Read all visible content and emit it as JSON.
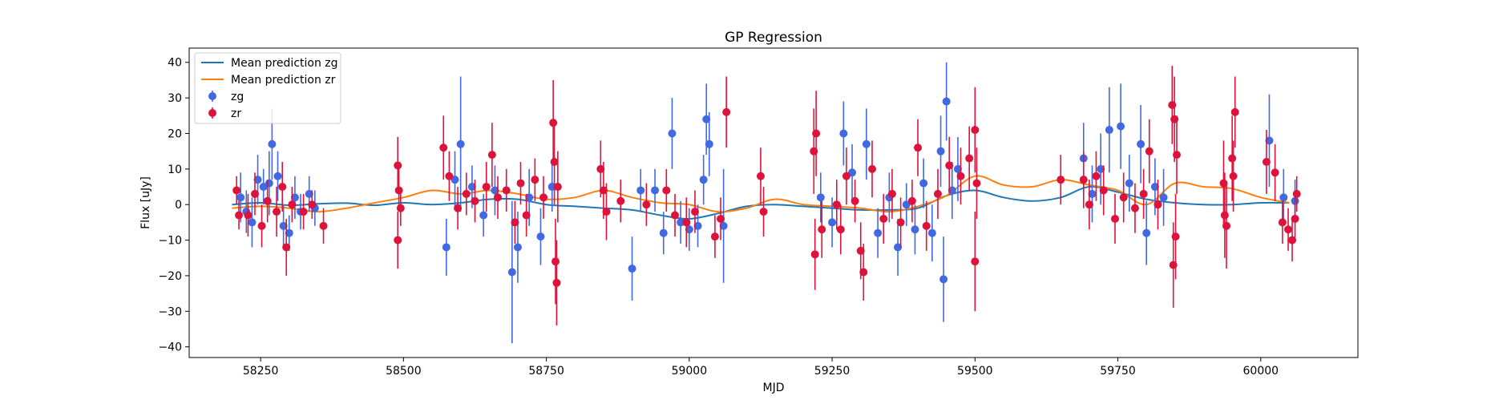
{
  "chart_data": {
    "type": "scatter",
    "title": "GP Regression",
    "xlabel": "MJD",
    "ylabel": "Flux [uJy]",
    "xlim": [
      58125,
      60170
    ],
    "ylim": [
      -43,
      44
    ],
    "xticks": [
      58250,
      58500,
      58750,
      59000,
      59250,
      59500,
      59750,
      60000
    ],
    "yticks": [
      -40,
      -30,
      -20,
      -10,
      0,
      10,
      20,
      30,
      40
    ],
    "grid": false,
    "legend_position": "top-left",
    "legend": [
      "Mean prediction zg",
      "Mean prediction zr",
      "zg",
      "zr"
    ],
    "series": [
      {
        "name": "Mean prediction zg",
        "kind": "line",
        "color": "#1f77b4",
        "x": [
          58200,
          58250,
          58300,
          58350,
          58400,
          58450,
          58500,
          58550,
          58600,
          58650,
          58700,
          58750,
          58800,
          58850,
          58900,
          58950,
          59000,
          59050,
          59100,
          59150,
          59200,
          59250,
          59300,
          59350,
          59400,
          59450,
          59500,
          59550,
          59600,
          59650,
          59700,
          59750,
          59800,
          59850,
          59900,
          59950,
          60000,
          60050
        ],
        "values": [
          0.0,
          0.5,
          -0.2,
          0.2,
          0.4,
          -0.2,
          0.5,
          0.0,
          0.5,
          1.5,
          1.5,
          0.0,
          -0.5,
          -1.0,
          -1.5,
          -3.0,
          -4.0,
          -2.5,
          -0.5,
          0.0,
          -0.5,
          -1.0,
          -1.5,
          -1.5,
          -1.0,
          2.5,
          4.0,
          2.0,
          1.0,
          2.0,
          5.0,
          3.5,
          1.5,
          0.5,
          0.0,
          0.0,
          0.5,
          0.5
        ]
      },
      {
        "name": "Mean prediction zr",
        "kind": "line",
        "color": "#ff7f0e",
        "x": [
          58200,
          58250,
          58300,
          58350,
          58400,
          58450,
          58500,
          58550,
          58600,
          58650,
          58700,
          58750,
          58800,
          58850,
          58900,
          58950,
          59000,
          59050,
          59100,
          59150,
          59200,
          59250,
          59300,
          59350,
          59400,
          59450,
          59500,
          59550,
          59600,
          59650,
          59700,
          59750,
          59800,
          59850,
          59900,
          59950,
          60000,
          60050
        ],
        "values": [
          -1.0,
          -0.5,
          -1.0,
          -2.0,
          -1.0,
          0.5,
          2.0,
          4.0,
          3.0,
          4.0,
          3.0,
          1.5,
          2.0,
          4.0,
          2.0,
          0.5,
          0.0,
          -2.0,
          -1.0,
          1.5,
          0.0,
          -0.5,
          -1.0,
          -2.0,
          -0.5,
          2.5,
          8.0,
          5.5,
          5.0,
          7.0,
          5.5,
          4.0,
          0.0,
          6.0,
          5.0,
          4.5,
          2.0,
          0.5
        ]
      },
      {
        "name": "zg",
        "kind": "errorbar",
        "color": "#4169e1",
        "points": [
          {
            "x": 58215,
            "y": 2,
            "err": 7
          },
          {
            "x": 58225,
            "y": -2,
            "err": 6
          },
          {
            "x": 58235,
            "y": -5,
            "err": 7
          },
          {
            "x": 58245,
            "y": 7,
            "err": 7
          },
          {
            "x": 58255,
            "y": 5,
            "err": 5
          },
          {
            "x": 58265,
            "y": 6,
            "err": 9
          },
          {
            "x": 58270,
            "y": 17,
            "err": 10
          },
          {
            "x": 58280,
            "y": 8,
            "err": 7
          },
          {
            "x": 58290,
            "y": -6,
            "err": 6
          },
          {
            "x": 58300,
            "y": -8,
            "err": 5
          },
          {
            "x": 58310,
            "y": 2,
            "err": 6
          },
          {
            "x": 58320,
            "y": -2,
            "err": 5
          },
          {
            "x": 58335,
            "y": 3,
            "err": 5
          },
          {
            "x": 58345,
            "y": -1,
            "err": 5
          },
          {
            "x": 58575,
            "y": -12,
            "err": 8
          },
          {
            "x": 58590,
            "y": 7,
            "err": 8
          },
          {
            "x": 58600,
            "y": 17,
            "err": 19
          },
          {
            "x": 58620,
            "y": 5,
            "err": 6
          },
          {
            "x": 58640,
            "y": -3,
            "err": 6
          },
          {
            "x": 58660,
            "y": 4,
            "err": 7
          },
          {
            "x": 58690,
            "y": -19,
            "err": 20
          },
          {
            "x": 58700,
            "y": -12,
            "err": 10
          },
          {
            "x": 58720,
            "y": 2,
            "err": 8
          },
          {
            "x": 58740,
            "y": -9,
            "err": 8
          },
          {
            "x": 58760,
            "y": 5,
            "err": 7
          },
          {
            "x": 58900,
            "y": -18,
            "err": 9
          },
          {
            "x": 58915,
            "y": 4,
            "err": 6
          },
          {
            "x": 58940,
            "y": 4,
            "err": 6
          },
          {
            "x": 58955,
            "y": -8,
            "err": 6
          },
          {
            "x": 58970,
            "y": 20,
            "err": 10
          },
          {
            "x": 58985,
            "y": -5,
            "err": 6
          },
          {
            "x": 59000,
            "y": -7,
            "err": 6
          },
          {
            "x": 59015,
            "y": -6,
            "err": 6
          },
          {
            "x": 59025,
            "y": 7,
            "err": 7
          },
          {
            "x": 59030,
            "y": 24,
            "err": 10
          },
          {
            "x": 59035,
            "y": 17,
            "err": 9
          },
          {
            "x": 59060,
            "y": -6,
            "err": 16
          },
          {
            "x": 59230,
            "y": 2,
            "err": 7
          },
          {
            "x": 59250,
            "y": -5,
            "err": 7
          },
          {
            "x": 59270,
            "y": 20,
            "err": 9
          },
          {
            "x": 59285,
            "y": 9,
            "err": 8
          },
          {
            "x": 59310,
            "y": 17,
            "err": 10
          },
          {
            "x": 59330,
            "y": -8,
            "err": 7
          },
          {
            "x": 59350,
            "y": 2,
            "err": 7
          },
          {
            "x": 59365,
            "y": -12,
            "err": 8
          },
          {
            "x": 59380,
            "y": 0,
            "err": 6
          },
          {
            "x": 59395,
            "y": -7,
            "err": 7
          },
          {
            "x": 59410,
            "y": 6,
            "err": 7
          },
          {
            "x": 59425,
            "y": -8,
            "err": 8
          },
          {
            "x": 59440,
            "y": 15,
            "err": 10
          },
          {
            "x": 59445,
            "y": -21,
            "err": 12
          },
          {
            "x": 59450,
            "y": 29,
            "err": 11
          },
          {
            "x": 59460,
            "y": 4,
            "err": 8
          },
          {
            "x": 59470,
            "y": 10,
            "err": 9
          },
          {
            "x": 59690,
            "y": 13,
            "err": 10
          },
          {
            "x": 59705,
            "y": 3,
            "err": 8
          },
          {
            "x": 59720,
            "y": 10,
            "err": 10
          },
          {
            "x": 59735,
            "y": 21,
            "err": 12
          },
          {
            "x": 59755,
            "y": 22,
            "err": 12
          },
          {
            "x": 59770,
            "y": 6,
            "err": 8
          },
          {
            "x": 59790,
            "y": 17,
            "err": 11
          },
          {
            "x": 59800,
            "y": -8,
            "err": 9
          },
          {
            "x": 59815,
            "y": 5,
            "err": 8
          },
          {
            "x": 59830,
            "y": 2,
            "err": 8
          },
          {
            "x": 60015,
            "y": 18,
            "err": 13
          },
          {
            "x": 60040,
            "y": 2,
            "err": 8
          },
          {
            "x": 60060,
            "y": 1,
            "err": 6
          }
        ]
      },
      {
        "name": "zr",
        "kind": "errorbar",
        "color": "#dc143c",
        "points": [
          {
            "x": 58208,
            "y": 4,
            "err": 4
          },
          {
            "x": 58212,
            "y": -3,
            "err": 4
          },
          {
            "x": 58228,
            "y": -3,
            "err": 6
          },
          {
            "x": 58240,
            "y": 3,
            "err": 6
          },
          {
            "x": 58252,
            "y": -6,
            "err": 6
          },
          {
            "x": 58262,
            "y": 1,
            "err": 6
          },
          {
            "x": 58278,
            "y": -2,
            "err": 7
          },
          {
            "x": 58288,
            "y": 5,
            "err": 7
          },
          {
            "x": 58295,
            "y": -12,
            "err": 8
          },
          {
            "x": 58305,
            "y": 0,
            "err": 5
          },
          {
            "x": 58325,
            "y": -2,
            "err": 5
          },
          {
            "x": 58340,
            "y": 0,
            "err": 4
          },
          {
            "x": 58360,
            "y": -6,
            "err": 5
          },
          {
            "x": 58490,
            "y": 11,
            "err": 8
          },
          {
            "x": 58490,
            "y": -10,
            "err": 8
          },
          {
            "x": 58492,
            "y": 4,
            "err": 6
          },
          {
            "x": 58495,
            "y": -1,
            "err": 5
          },
          {
            "x": 58570,
            "y": 16,
            "err": 9
          },
          {
            "x": 58580,
            "y": 8,
            "err": 7
          },
          {
            "x": 58595,
            "y": -1,
            "err": 6
          },
          {
            "x": 58610,
            "y": 3,
            "err": 6
          },
          {
            "x": 58625,
            "y": 1,
            "err": 6
          },
          {
            "x": 58645,
            "y": 5,
            "err": 7
          },
          {
            "x": 58655,
            "y": 14,
            "err": 9
          },
          {
            "x": 58665,
            "y": 2,
            "err": 6
          },
          {
            "x": 58680,
            "y": 4,
            "err": 6
          },
          {
            "x": 58695,
            "y": -5,
            "err": 6
          },
          {
            "x": 58705,
            "y": 6,
            "err": 6
          },
          {
            "x": 58715,
            "y": -3,
            "err": 6
          },
          {
            "x": 58730,
            "y": 7,
            "err": 6
          },
          {
            "x": 58745,
            "y": 2,
            "err": 6
          },
          {
            "x": 58762,
            "y": 23,
            "err": 12
          },
          {
            "x": 58764,
            "y": 12,
            "err": 12
          },
          {
            "x": 58766,
            "y": -16,
            "err": 12
          },
          {
            "x": 58768,
            "y": -22,
            "err": 12
          },
          {
            "x": 58770,
            "y": 5,
            "err": 10
          },
          {
            "x": 58845,
            "y": 10,
            "err": 8
          },
          {
            "x": 58850,
            "y": 4,
            "err": 8
          },
          {
            "x": 58855,
            "y": -2,
            "err": 8
          },
          {
            "x": 58880,
            "y": 1,
            "err": 6
          },
          {
            "x": 58925,
            "y": 0,
            "err": 6
          },
          {
            "x": 58960,
            "y": 4,
            "err": 6
          },
          {
            "x": 58975,
            "y": -3,
            "err": 6
          },
          {
            "x": 58995,
            "y": -5,
            "err": 7
          },
          {
            "x": 59010,
            "y": -2,
            "err": 6
          },
          {
            "x": 59045,
            "y": -9,
            "err": 6
          },
          {
            "x": 59055,
            "y": -4,
            "err": 6
          },
          {
            "x": 59065,
            "y": 26,
            "err": 10
          },
          {
            "x": 59125,
            "y": 8,
            "err": 8
          },
          {
            "x": 59130,
            "y": -2,
            "err": 7
          },
          {
            "x": 59218,
            "y": 15,
            "err": 12
          },
          {
            "x": 59220,
            "y": -14,
            "err": 10
          },
          {
            "x": 59222,
            "y": 20,
            "err": 12
          },
          {
            "x": 59232,
            "y": -7,
            "err": 8
          },
          {
            "x": 59258,
            "y": 0,
            "err": 7
          },
          {
            "x": 59265,
            "y": -7,
            "err": 7
          },
          {
            "x": 59275,
            "y": 8,
            "err": 8
          },
          {
            "x": 59290,
            "y": 1,
            "err": 6
          },
          {
            "x": 59300,
            "y": -13,
            "err": 8
          },
          {
            "x": 59305,
            "y": -19,
            "err": 8
          },
          {
            "x": 59320,
            "y": 10,
            "err": 8
          },
          {
            "x": 59340,
            "y": -4,
            "err": 7
          },
          {
            "x": 59355,
            "y": 3,
            "err": 7
          },
          {
            "x": 59370,
            "y": -5,
            "err": 7
          },
          {
            "x": 59390,
            "y": 1,
            "err": 6
          },
          {
            "x": 59400,
            "y": 16,
            "err": 8
          },
          {
            "x": 59415,
            "y": -6,
            "err": 7
          },
          {
            "x": 59435,
            "y": 3,
            "err": 7
          },
          {
            "x": 59455,
            "y": 11,
            "err": 8
          },
          {
            "x": 59475,
            "y": 8,
            "err": 8
          },
          {
            "x": 59490,
            "y": 13,
            "err": 9
          },
          {
            "x": 59500,
            "y": 21,
            "err": 12
          },
          {
            "x": 59500,
            "y": -16,
            "err": 14
          },
          {
            "x": 59503,
            "y": 6,
            "err": 10
          },
          {
            "x": 59650,
            "y": 7,
            "err": 7
          },
          {
            "x": 59690,
            "y": 7,
            "err": 8
          },
          {
            "x": 59700,
            "y": 0,
            "err": 7
          },
          {
            "x": 59712,
            "y": 8,
            "err": 7
          },
          {
            "x": 59725,
            "y": 4,
            "err": 7
          },
          {
            "x": 59745,
            "y": -4,
            "err": 7
          },
          {
            "x": 59760,
            "y": 2,
            "err": 7
          },
          {
            "x": 59780,
            "y": -1,
            "err": 7
          },
          {
            "x": 59795,
            "y": 3,
            "err": 7
          },
          {
            "x": 59805,
            "y": 15,
            "err": 9
          },
          {
            "x": 59820,
            "y": 0,
            "err": 7
          },
          {
            "x": 59845,
            "y": 28,
            "err": 11
          },
          {
            "x": 59847,
            "y": -17,
            "err": 12
          },
          {
            "x": 59849,
            "y": 24,
            "err": 12
          },
          {
            "x": 59851,
            "y": -9,
            "err": 12
          },
          {
            "x": 59853,
            "y": 14,
            "err": 11
          },
          {
            "x": 59935,
            "y": 6,
            "err": 12
          },
          {
            "x": 59937,
            "y": -3,
            "err": 12
          },
          {
            "x": 59940,
            "y": -6,
            "err": 12
          },
          {
            "x": 59950,
            "y": 13,
            "err": 12
          },
          {
            "x": 59952,
            "y": 8,
            "err": 10
          },
          {
            "x": 59955,
            "y": 26,
            "err": 10
          },
          {
            "x": 60010,
            "y": 12,
            "err": 9
          },
          {
            "x": 60025,
            "y": 9,
            "err": 8
          },
          {
            "x": 60038,
            "y": -5,
            "err": 6
          },
          {
            "x": 60048,
            "y": -7,
            "err": 6
          },
          {
            "x": 60055,
            "y": -10,
            "err": 6
          },
          {
            "x": 60060,
            "y": -4,
            "err": 6
          },
          {
            "x": 60063,
            "y": 3,
            "err": 5
          }
        ]
      }
    ]
  }
}
